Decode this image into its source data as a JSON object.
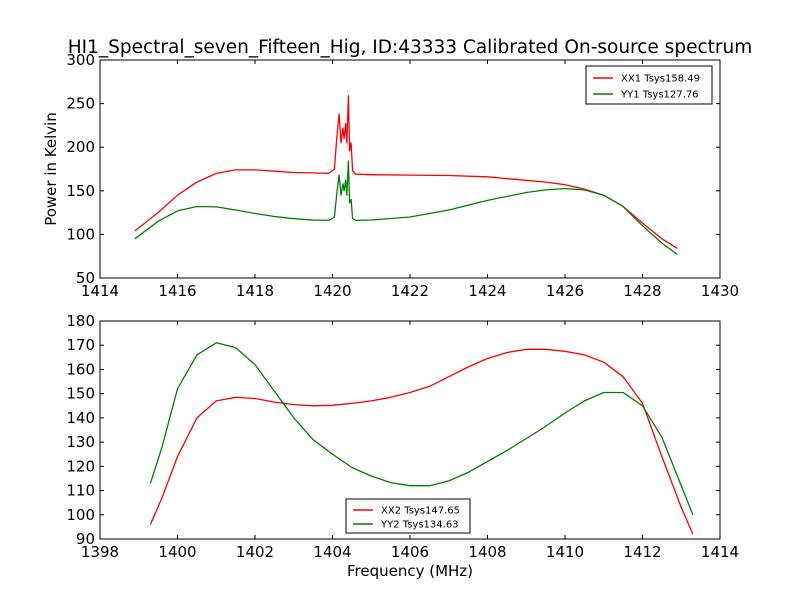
{
  "title": "HI1_Spectral_seven_Fifteen_Hig, ID:43333 Calibrated On-source spectrum",
  "colors": {
    "red": "#ff0000",
    "green": "#008000"
  },
  "chart_data": [
    {
      "type": "line",
      "xlabel": "",
      "ylabel": "Power in Kelvin",
      "xlim": [
        1414,
        1430
      ],
      "ylim": [
        50,
        300
      ],
      "xticks": [
        1414,
        1416,
        1418,
        1420,
        1422,
        1424,
        1426,
        1428,
        1430
      ],
      "yticks": [
        50,
        100,
        150,
        200,
        250,
        300
      ],
      "legend_position": "top-right",
      "grid": false,
      "series": [
        {
          "name": "XX1 Tsys158.49",
          "color": "#ff0000",
          "points": [
            [
              1414.9,
              104
            ],
            [
              1415.5,
              125
            ],
            [
              1416,
              145
            ],
            [
              1416.5,
              160
            ],
            [
              1417,
              170
            ],
            [
              1417.5,
              174
            ],
            [
              1418,
              174
            ],
            [
              1418.5,
              172.5
            ],
            [
              1419,
              171
            ],
            [
              1419.5,
              170.5
            ],
            [
              1419.9,
              170
            ],
            [
              1420.05,
              175
            ],
            [
              1420.12,
              215
            ],
            [
              1420.17,
              238
            ],
            [
              1420.22,
              205
            ],
            [
              1420.27,
              222
            ],
            [
              1420.3,
              210
            ],
            [
              1420.34,
              227
            ],
            [
              1420.37,
              205
            ],
            [
              1420.41,
              259
            ],
            [
              1420.44,
              196
            ],
            [
              1420.48,
              205
            ],
            [
              1420.52,
              173
            ],
            [
              1420.6,
              169
            ],
            [
              1421,
              168.5
            ],
            [
              1422,
              168
            ],
            [
              1423,
              167.5
            ],
            [
              1424,
              166
            ],
            [
              1424.5,
              164
            ],
            [
              1425,
              162
            ],
            [
              1425.5,
              160
            ],
            [
              1426,
              157
            ],
            [
              1426.5,
              152
            ],
            [
              1427,
              145
            ],
            [
              1427.5,
              132
            ],
            [
              1428,
              113
            ],
            [
              1428.5,
              95
            ],
            [
              1428.9,
              84
            ]
          ]
        },
        {
          "name": "YY1 Tsys127.76",
          "color": "#008000",
          "points": [
            [
              1414.9,
              95
            ],
            [
              1415.5,
              115
            ],
            [
              1416,
              127
            ],
            [
              1416.5,
              132
            ],
            [
              1417,
              131.5
            ],
            [
              1417.5,
              128
            ],
            [
              1418,
              124
            ],
            [
              1418.5,
              120.5
            ],
            [
              1419,
              118
            ],
            [
              1419.5,
              116.5
            ],
            [
              1419.9,
              116
            ],
            [
              1420.05,
              120
            ],
            [
              1420.12,
              150
            ],
            [
              1420.17,
              168
            ],
            [
              1420.22,
              145
            ],
            [
              1420.27,
              158
            ],
            [
              1420.3,
              150
            ],
            [
              1420.34,
              162
            ],
            [
              1420.37,
              145
            ],
            [
              1420.41,
              184
            ],
            [
              1420.44,
              136
            ],
            [
              1420.48,
              140
            ],
            [
              1420.52,
              118
            ],
            [
              1420.6,
              116
            ],
            [
              1421,
              116.5
            ],
            [
              1422,
              120
            ],
            [
              1423,
              128
            ],
            [
              1424,
              139
            ],
            [
              1425,
              148
            ],
            [
              1425.5,
              151
            ],
            [
              1426,
              152.5
            ],
            [
              1426.5,
              151
            ],
            [
              1427,
              145
            ],
            [
              1427.5,
              132
            ],
            [
              1428,
              110
            ],
            [
              1428.5,
              90
            ],
            [
              1428.9,
              77
            ]
          ]
        }
      ]
    },
    {
      "type": "line",
      "xlabel": "Frequency (MHz)",
      "ylabel": "",
      "xlim": [
        1398,
        1414
      ],
      "ylim": [
        90,
        180
      ],
      "xticks": [
        1398,
        1400,
        1402,
        1404,
        1406,
        1408,
        1410,
        1412,
        1414
      ],
      "yticks": [
        90,
        100,
        110,
        120,
        130,
        140,
        150,
        160,
        170,
        180
      ],
      "legend_position": "bottom-center",
      "grid": false,
      "series": [
        {
          "name": "XX2 Tsys147.65",
          "color": "#ff0000",
          "points": [
            [
              1399.3,
              96
            ],
            [
              1399.6,
              107
            ],
            [
              1400,
              124
            ],
            [
              1400.5,
              140
            ],
            [
              1401,
              147
            ],
            [
              1401.5,
              148.5
            ],
            [
              1402,
              148
            ],
            [
              1402.5,
              146.5
            ],
            [
              1403,
              145.5
            ],
            [
              1403.5,
              145
            ],
            [
              1404,
              145.2
            ],
            [
              1404.5,
              146
            ],
            [
              1405,
              147
            ],
            [
              1405.5,
              148.5
            ],
            [
              1406,
              150.5
            ],
            [
              1406.5,
              153
            ],
            [
              1407,
              157
            ],
            [
              1407.5,
              161
            ],
            [
              1408,
              164.5
            ],
            [
              1408.5,
              167
            ],
            [
              1409,
              168.3
            ],
            [
              1409.5,
              168.3
            ],
            [
              1410,
              167.5
            ],
            [
              1410.5,
              166
            ],
            [
              1411,
              163
            ],
            [
              1411.5,
              157
            ],
            [
              1412,
              146
            ],
            [
              1412.5,
              124
            ],
            [
              1413,
              103
            ],
            [
              1413.3,
              92
            ]
          ]
        },
        {
          "name": "YY2 Tsys134.63",
          "color": "#008000",
          "points": [
            [
              1399.3,
              113
            ],
            [
              1399.6,
              128
            ],
            [
              1400,
              152
            ],
            [
              1400.5,
              166
            ],
            [
              1401,
              171
            ],
            [
              1401.5,
              169
            ],
            [
              1402,
              162
            ],
            [
              1402.5,
              151
            ],
            [
              1403,
              140
            ],
            [
              1403.5,
              131
            ],
            [
              1404,
              125
            ],
            [
              1404.5,
              119.5
            ],
            [
              1405,
              116
            ],
            [
              1405.5,
              113.3
            ],
            [
              1406,
              112
            ],
            [
              1406.5,
              112
            ],
            [
              1407,
              114
            ],
            [
              1407.5,
              117.5
            ],
            [
              1408,
              122
            ],
            [
              1408.5,
              126.5
            ],
            [
              1409,
              131.5
            ],
            [
              1409.5,
              136.5
            ],
            [
              1410,
              142
            ],
            [
              1410.5,
              147
            ],
            [
              1411,
              150.5
            ],
            [
              1411.5,
              150.5
            ],
            [
              1412,
              145
            ],
            [
              1412.5,
              132
            ],
            [
              1413,
              112
            ],
            [
              1413.3,
              100
            ]
          ]
        }
      ]
    }
  ]
}
